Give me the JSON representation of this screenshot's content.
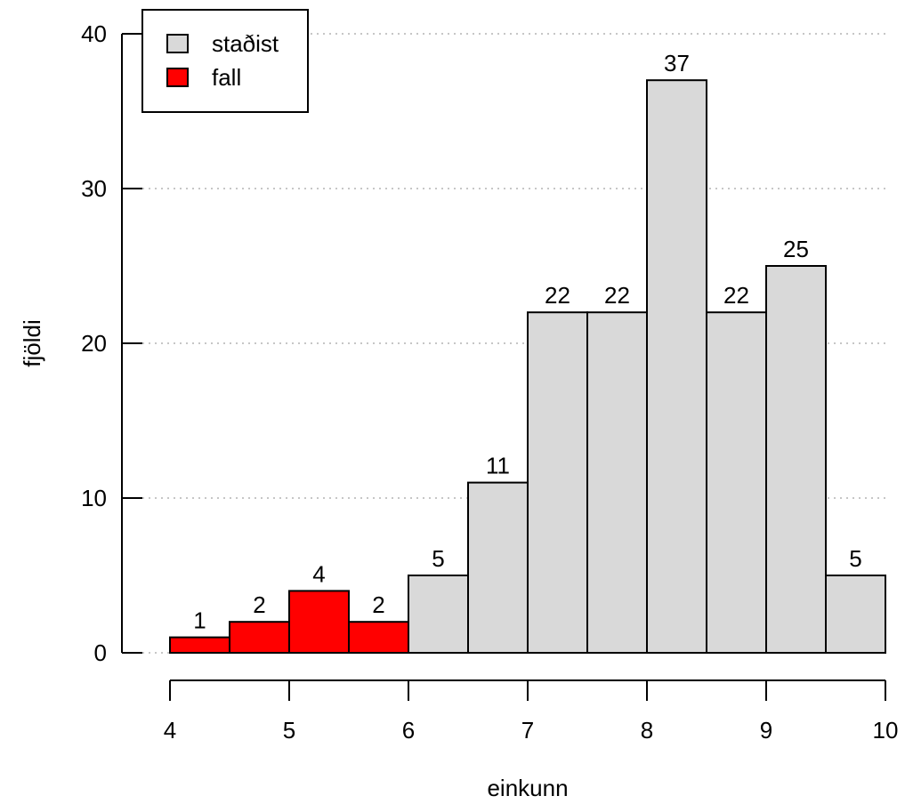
{
  "chart_data": {
    "type": "bar",
    "title": "",
    "xlabel": "einkunn",
    "ylabel": "fjöldi",
    "xlim": [
      4,
      10
    ],
    "ylim": [
      0,
      40
    ],
    "xticks": [
      "4",
      "5",
      "6",
      "7",
      "8",
      "9",
      "10"
    ],
    "yticks": [
      "0",
      "10",
      "20",
      "30",
      "40"
    ],
    "grid": "horizontal-dotted",
    "legend_position": "top-left",
    "bins": [
      {
        "from": 4.0,
        "to": 4.5,
        "value": 1,
        "label": "1",
        "series": "fall"
      },
      {
        "from": 4.5,
        "to": 5.0,
        "value": 2,
        "label": "2",
        "series": "fall"
      },
      {
        "from": 5.0,
        "to": 5.5,
        "value": 4,
        "label": "4",
        "series": "fall"
      },
      {
        "from": 5.5,
        "to": 6.0,
        "value": 2,
        "label": "2",
        "series": "fall"
      },
      {
        "from": 6.0,
        "to": 6.5,
        "value": 5,
        "label": "5",
        "series": "staðist"
      },
      {
        "from": 6.5,
        "to": 7.0,
        "value": 11,
        "label": "11",
        "series": "staðist"
      },
      {
        "from": 7.0,
        "to": 7.5,
        "value": 22,
        "label": "22",
        "series": "staðist"
      },
      {
        "from": 7.5,
        "to": 8.0,
        "value": 22,
        "label": "22",
        "series": "staðist"
      },
      {
        "from": 8.0,
        "to": 8.5,
        "value": 37,
        "label": "37",
        "series": "staðist"
      },
      {
        "from": 8.5,
        "to": 9.0,
        "value": 22,
        "label": "22",
        "series": "staðist"
      },
      {
        "from": 9.0,
        "to": 9.5,
        "value": 25,
        "label": "25",
        "series": "staðist"
      },
      {
        "from": 9.5,
        "to": 10.0,
        "value": 5,
        "label": "5",
        "series": "staðist"
      }
    ],
    "series": [
      {
        "name": "staðist",
        "color": "#d9d9d9"
      },
      {
        "name": "fall",
        "color": "#ff0000"
      }
    ]
  }
}
